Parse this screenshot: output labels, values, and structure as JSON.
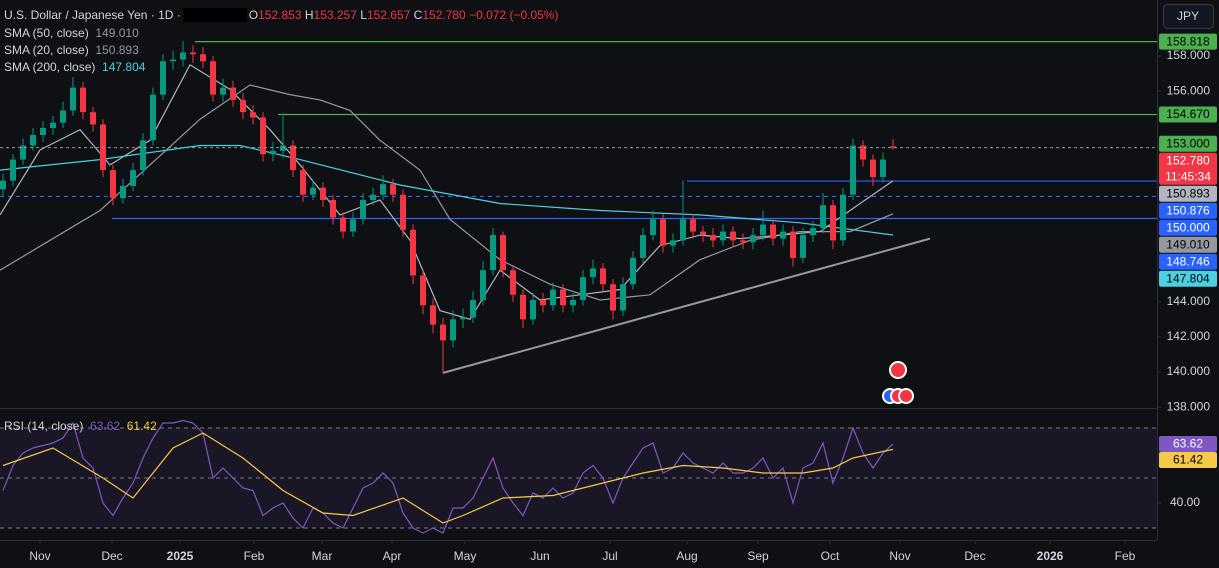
{
  "chart_data": {
    "type": "candlestick",
    "title": "U.S. Dollar / Japanese Yen · 1D ·",
    "ohlc_keys": [
      "O",
      "H",
      "L",
      "C"
    ],
    "change": "−0.072 (−0.05%)",
    "currency": "JPY",
    "countdown": "11:45:34",
    "xlim": [
      -0.3,
      115.4
    ],
    "xticks": [
      {
        "value": 3.7,
        "label": "Nov"
      },
      {
        "value": 10.9,
        "label": "Dec"
      },
      {
        "value": 17.7,
        "label": "2025"
      },
      {
        "value": 25.1,
        "label": "Feb"
      },
      {
        "value": 31.9,
        "label": "Mar"
      },
      {
        "value": 38.9,
        "label": "Apr"
      },
      {
        "value": 46.2,
        "label": "May"
      },
      {
        "value": 53.7,
        "label": "Jun"
      },
      {
        "value": 60.7,
        "label": "Jul"
      },
      {
        "value": 68.4,
        "label": "Aug"
      },
      {
        "value": 75.5,
        "label": "Sep"
      },
      {
        "value": 82.7,
        "label": "Oct"
      },
      {
        "value": 89.7,
        "label": "Nov"
      },
      {
        "value": 97.2,
        "label": "Dec"
      },
      {
        "value": 104.7,
        "label": "2026"
      },
      {
        "value": 112.2,
        "label": "Feb"
      }
    ],
    "ylim": [
      137.95,
      161.19
    ],
    "yticks": [
      {
        "value": 138,
        "label": "138.000"
      },
      {
        "value": 140,
        "label": "140.000"
      },
      {
        "value": 142,
        "label": "142.000"
      },
      {
        "value": 144,
        "label": "144.000"
      },
      {
        "value": 156,
        "label": "156.000"
      },
      {
        "value": 158,
        "label": "158.000"
      }
    ],
    "candles": {
      "up_color": "#089981",
      "down_color": "#f23645",
      "open": [
        150.4,
        150.9,
        152.1,
        152.9,
        153.5,
        153.9,
        154.2,
        154.9,
        156.2,
        154.8,
        154.1,
        151.5,
        149.9,
        150.6,
        151.5,
        153.2,
        155.8,
        157.7,
        157.8,
        158.2,
        158.1,
        157.7,
        155.8,
        156.2,
        155.5,
        154.8,
        154.5,
        152.4,
        152.6,
        152.9,
        151.5,
        150.1,
        150.5,
        149.8,
        148.8,
        148.0,
        148.7,
        149.8,
        150.1,
        150.7,
        150.1,
        148.1,
        145.5,
        143.8,
        142.7,
        141.8,
        143.0,
        143.1,
        144.1,
        145.8,
        147.8,
        145.8,
        144.4,
        143.0,
        144.1,
        143.8,
        144.7,
        143.8,
        144.1,
        145.4,
        145.9,
        145.0,
        143.5,
        145.0,
        146.5,
        147.8,
        148.7,
        147.2,
        147.5,
        148.7,
        148.0,
        147.8,
        147.5,
        148.0,
        147.5,
        147.4,
        147.8,
        148.4,
        147.6,
        148.0,
        146.5,
        147.8,
        148.2,
        149.5,
        147.5,
        150.1,
        152.9,
        152.1,
        151.1,
        152.853
      ],
      "high": [
        151.3,
        152.4,
        153.3,
        153.9,
        154.3,
        154.6,
        155.4,
        156.8,
        156.5,
        155.1,
        154.4,
        151.8,
        151.0,
        151.9,
        153.6,
        156.2,
        158.1,
        158.3,
        158.87,
        158.6,
        158.5,
        158.0,
        156.7,
        156.6,
        155.9,
        155.2,
        154.8,
        153.1,
        154.6,
        153.2,
        151.8,
        150.9,
        150.8,
        150.1,
        149.1,
        149.1,
        150.2,
        150.5,
        151.2,
        151.0,
        150.4,
        148.4,
        145.8,
        144.2,
        143.1,
        143.5,
        143.6,
        144.6,
        146.3,
        148.2,
        148.0,
        146.1,
        144.7,
        144.5,
        144.5,
        145.1,
        145.0,
        144.5,
        145.8,
        146.4,
        146.2,
        145.3,
        145.4,
        146.9,
        148.2,
        149.2,
        149.0,
        147.9,
        150.9,
        149.0,
        148.3,
        148.2,
        148.4,
        148.3,
        147.9,
        148.2,
        149.2,
        148.7,
        148.4,
        148.3,
        148.2,
        148.6,
        150.2,
        149.8,
        150.5,
        153.3,
        153.2,
        152.4,
        152.5,
        153.257
      ],
      "low": [
        150.0,
        150.6,
        151.8,
        152.6,
        153.1,
        153.5,
        153.9,
        154.6,
        154.4,
        153.7,
        151.1,
        149.5,
        149.6,
        150.3,
        151.2,
        152.9,
        155.5,
        157.2,
        157.4,
        157.6,
        157.3,
        155.4,
        155.4,
        155.1,
        154.4,
        154.1,
        152.0,
        152.0,
        152.2,
        151.1,
        149.7,
        149.8,
        149.4,
        148.4,
        147.6,
        147.7,
        148.4,
        149.5,
        149.8,
        149.7,
        147.7,
        145.0,
        143.3,
        142.2,
        139.9,
        141.4,
        142.5,
        142.8,
        143.8,
        145.5,
        145.4,
        144.0,
        142.5,
        142.7,
        143.4,
        143.5,
        143.4,
        143.4,
        143.8,
        145.0,
        144.6,
        143.0,
        143.2,
        144.7,
        146.2,
        147.5,
        146.8,
        146.8,
        147.2,
        147.6,
        147.4,
        147.1,
        147.2,
        147.1,
        147.0,
        147.0,
        147.5,
        147.2,
        147.2,
        146.0,
        146.2,
        147.4,
        147.9,
        147.0,
        147.2,
        149.8,
        151.7,
        150.6,
        150.8,
        152.657
      ],
      "close": [
        150.9,
        152.1,
        152.9,
        153.5,
        153.9,
        154.2,
        154.9,
        156.2,
        154.8,
        154.1,
        151.5,
        149.9,
        150.6,
        151.5,
        153.2,
        155.8,
        157.7,
        157.8,
        158.2,
        158.1,
        157.7,
        155.8,
        156.2,
        155.5,
        154.8,
        154.5,
        152.4,
        152.6,
        152.9,
        151.5,
        150.1,
        150.5,
        149.8,
        148.8,
        148.0,
        148.7,
        149.8,
        150.1,
        150.7,
        150.1,
        148.1,
        145.5,
        143.8,
        142.7,
        141.8,
        143.0,
        143.1,
        144.1,
        145.8,
        147.8,
        145.8,
        144.4,
        143.0,
        144.1,
        143.8,
        144.7,
        143.8,
        144.1,
        145.4,
        145.9,
        145.0,
        143.5,
        145.0,
        146.5,
        147.8,
        148.7,
        147.2,
        147.5,
        148.7,
        148.0,
        147.8,
        147.5,
        148.0,
        147.5,
        147.4,
        147.8,
        148.4,
        147.6,
        148.0,
        146.5,
        147.8,
        148.2,
        149.5,
        147.5,
        150.1,
        152.9,
        152.1,
        151.1,
        152.1,
        152.78
      ]
    },
    "last_price": {
      "value": 152.78,
      "label": "152.780",
      "color": "#f23645"
    },
    "indicators": [
      {
        "name": "SMA (50, close)",
        "color": "#9598a1",
        "last": {
          "value": 149.01,
          "label": "149.010"
        },
        "x": [
          -0.3,
          4.7,
          9.7,
          14.7,
          19.7,
          24.7,
          28.7,
          31.7,
          34.7,
          37.7,
          41.7,
          44.7,
          49.7,
          54.7,
          59.7,
          64.7,
          69.7,
          74.7,
          79.7,
          84.7,
          89.0
        ],
        "values": [
          145.8,
          147.5,
          149.2,
          151.8,
          154.4,
          156.35,
          155.8,
          155.5,
          154.9,
          153.2,
          151.5,
          148.7,
          146.4,
          145.0,
          144.1,
          144.4,
          146.4,
          147.5,
          148.0,
          148.0,
          149.01
        ]
      },
      {
        "name": "SMA (20, close)",
        "color": "#b2b5be",
        "last": {
          "value": 150.893,
          "label": "150.893"
        },
        "x": [
          -0.3,
          3.7,
          7.7,
          10.7,
          14.7,
          18.7,
          22.7,
          26.7,
          29.7,
          33.7,
          37.7,
          40.7,
          43.7,
          46.7,
          49.7,
          53.7,
          57.7,
          61.7,
          65.7,
          69.7,
          73.7,
          77.7,
          81.7,
          84.7,
          89.0
        ],
        "values": [
          148.95,
          152.65,
          153.8,
          151.8,
          153.2,
          157.5,
          156.1,
          153.8,
          151.8,
          148.95,
          149.8,
          147.5,
          143.5,
          143.0,
          145.8,
          144.1,
          144.4,
          144.7,
          147.2,
          147.8,
          147.6,
          147.8,
          148.0,
          149.2,
          150.893
        ]
      },
      {
        "name": "SMA (200, close)",
        "color": "#4dd0e1",
        "last": {
          "value": 147.804,
          "label": "147.804"
        },
        "x": [
          -0.3,
          9.7,
          19.7,
          23.7,
          29.7,
          39.7,
          49.7,
          59.7,
          69.7,
          79.7,
          89.0
        ],
        "values": [
          151.5,
          152.1,
          152.9,
          152.9,
          152.1,
          150.65,
          149.6,
          149.2,
          148.95,
          148.5,
          147.804
        ]
      }
    ],
    "levels": [
      {
        "value": 158.818,
        "label": "158.818",
        "color": "#4caf50",
        "from": 19.2,
        "style": "solid"
      },
      {
        "value": 154.67,
        "label": "154.670",
        "color": "#4caf50",
        "from": 27.5,
        "style": "solid"
      },
      {
        "value": 153,
        "label": "153.000",
        "color": "#4caf50",
        "from": null,
        "style": "none"
      },
      {
        "value": 150.876,
        "label": "150.876",
        "color": "#2962ff",
        "from": 68.4,
        "style": "solid"
      },
      {
        "value": 150,
        "label": "150.000",
        "color": "#2962ff",
        "from": -0.3,
        "style": "dashed"
      },
      {
        "value": 148.746,
        "label": "148.746",
        "color": "#2962ff",
        "from": 10.9,
        "style": "solid"
      }
    ],
    "trendline": {
      "x": [
        44,
        92.7
      ],
      "y": [
        139.95,
        147.6
      ],
      "color": "#9598a1"
    },
    "rsi": {
      "title": "RSI (14, close)",
      "ylim": [
        25.2,
        77.2
      ],
      "yticks": [
        {
          "value": 40,
          "label": "40.00"
        }
      ],
      "bands": [
        30,
        50,
        70
      ],
      "color": "#7e57c2",
      "values": [
        45,
        55,
        60,
        62,
        63,
        64,
        66,
        72,
        58,
        54,
        40,
        35,
        42,
        48,
        58,
        66,
        72,
        72,
        73,
        72,
        68,
        50,
        54,
        50,
        46,
        45,
        35,
        38,
        40,
        34,
        30,
        38,
        36,
        32,
        30,
        38,
        46,
        48,
        52,
        48,
        36,
        30,
        28,
        30,
        28,
        38,
        38,
        42,
        50,
        58,
        46,
        40,
        35,
        44,
        42,
        46,
        42,
        44,
        52,
        55,
        50,
        40,
        50,
        56,
        62,
        64,
        52,
        54,
        60,
        56,
        54,
        52,
        56,
        52,
        52,
        54,
        58,
        50,
        54,
        40,
        54,
        56,
        64,
        48,
        58,
        70,
        60,
        54,
        60,
        63.62
      ],
      "ma": {
        "color": "#f7c948",
        "x": [
          0,
          5,
          10,
          13,
          17,
          20,
          24,
          28,
          32,
          35,
          40,
          44,
          46,
          50,
          55,
          60,
          64,
          68,
          72,
          76,
          80,
          83,
          85,
          89
        ],
        "values": [
          55,
          62,
          50,
          42,
          62,
          68,
          58,
          45,
          36,
          35,
          42,
          32,
          35,
          42,
          43,
          48,
          52,
          55,
          54,
          52,
          52,
          54,
          58,
          61.42
        ]
      }
    }
  }
}
